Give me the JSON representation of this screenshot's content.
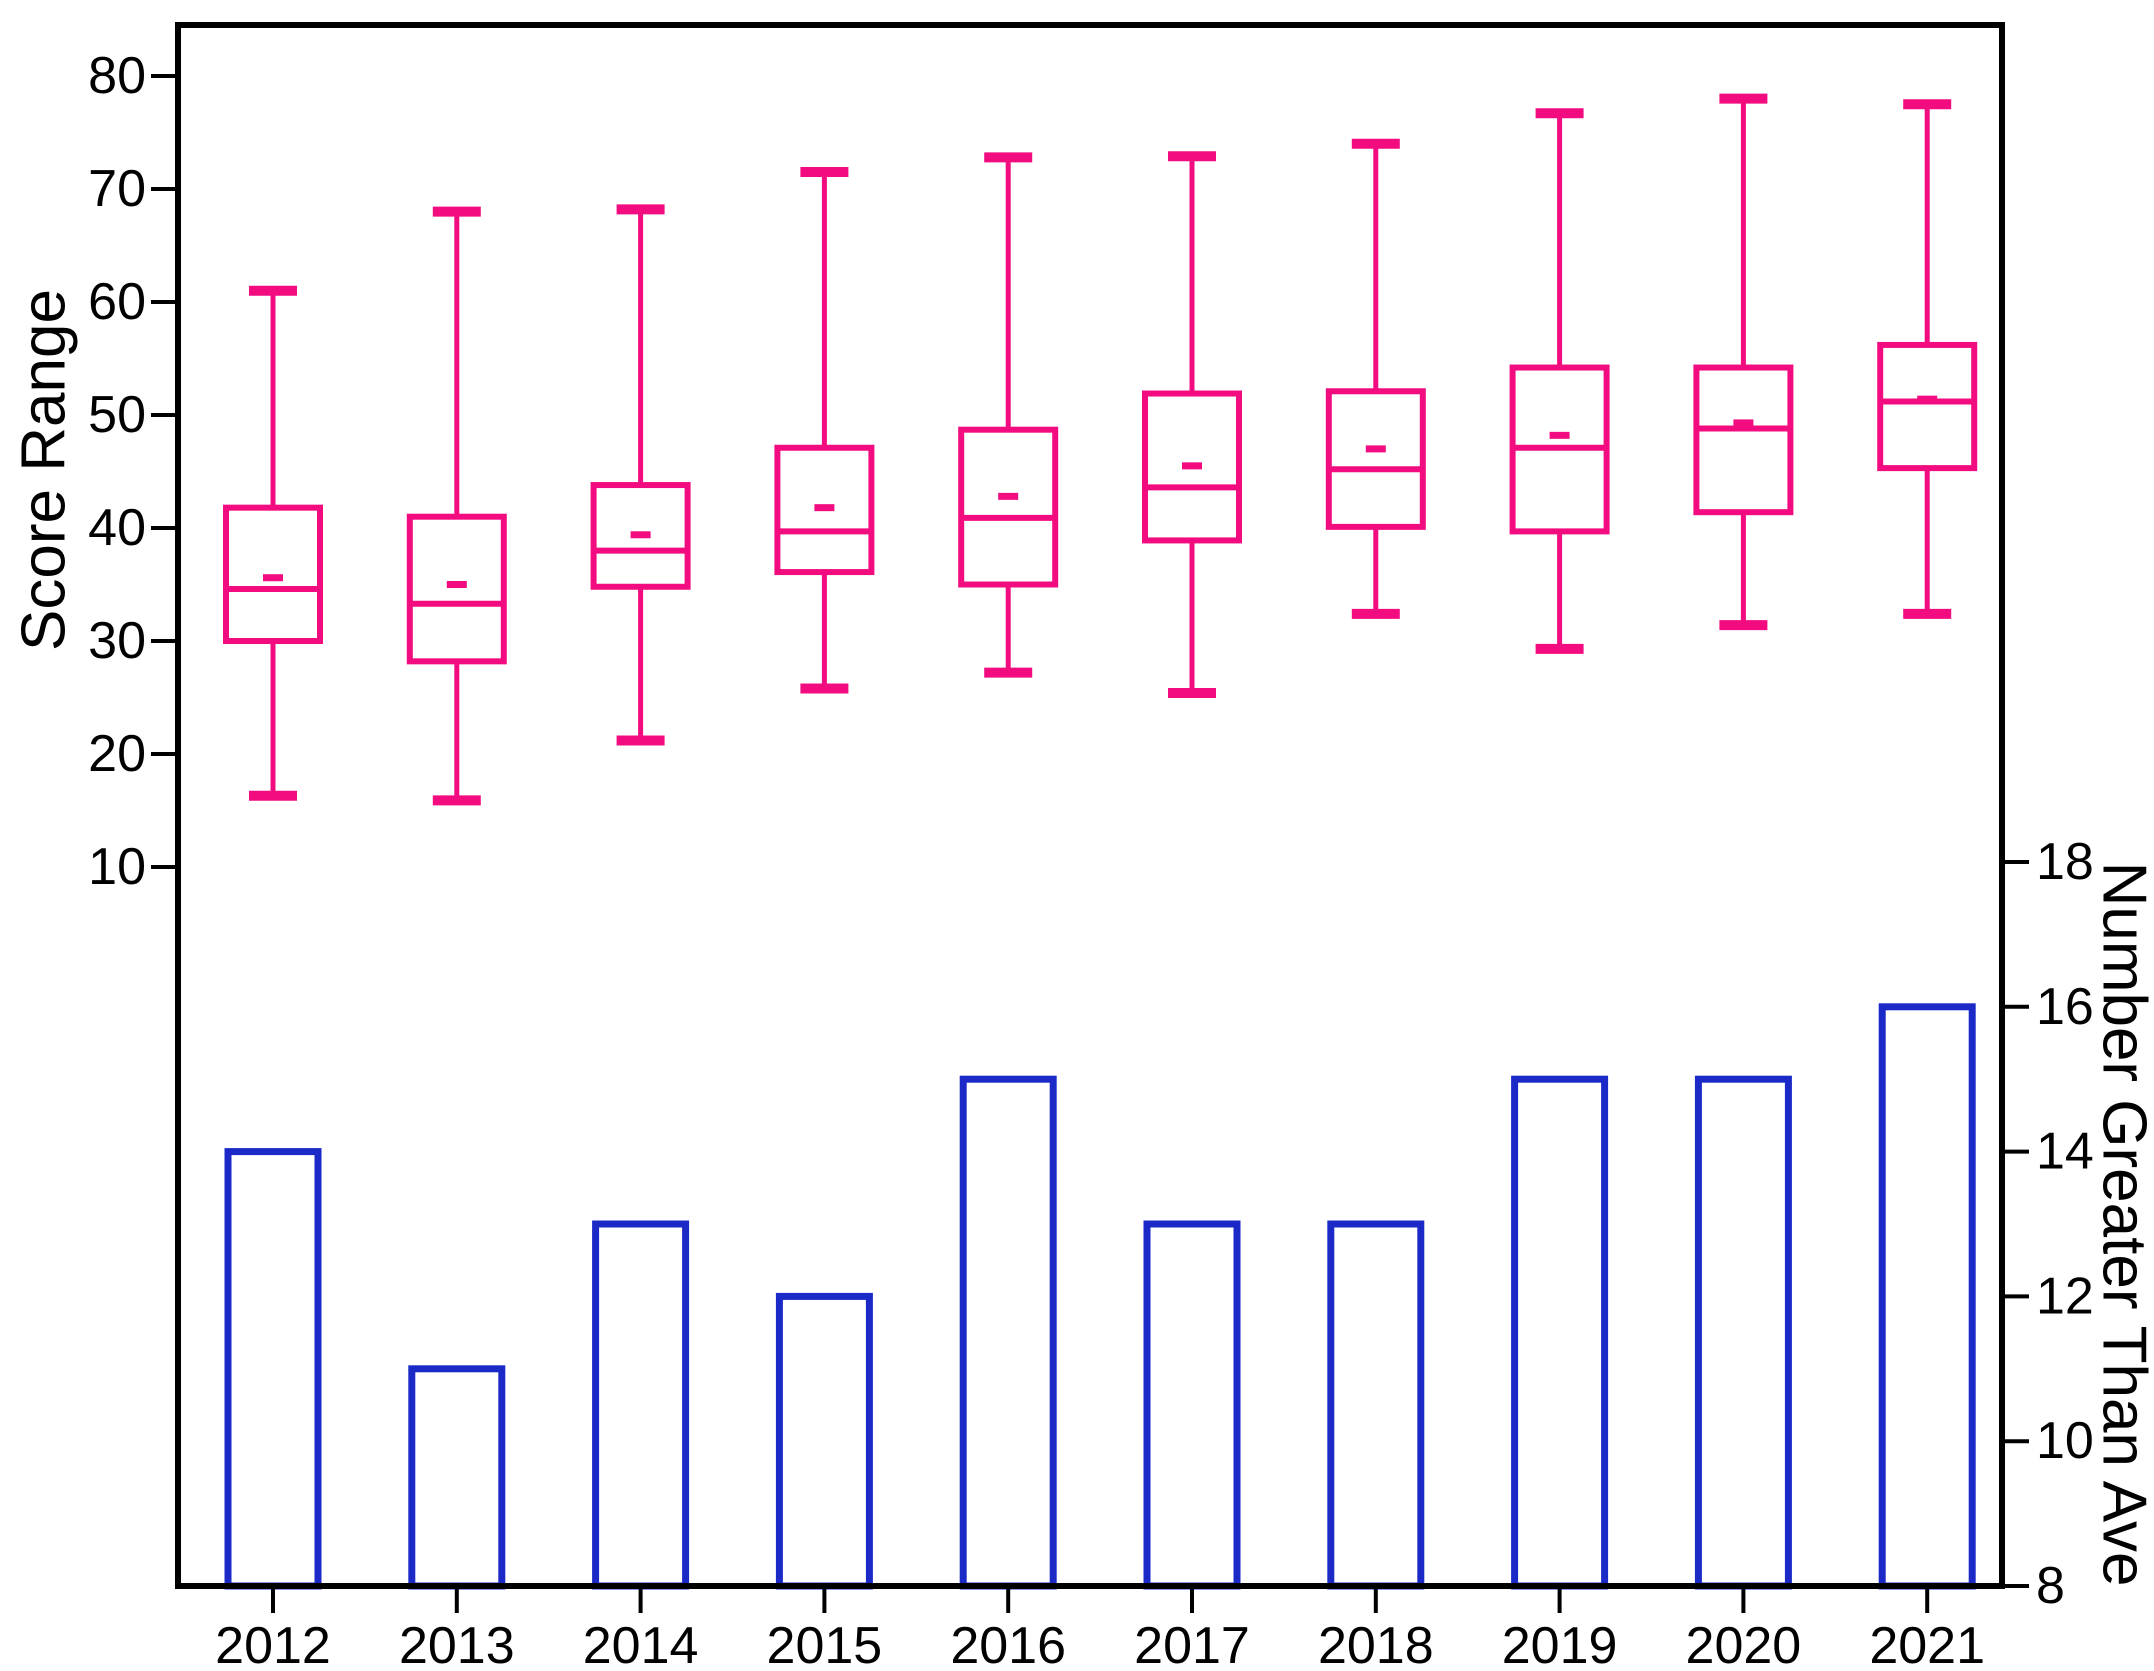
{
  "figure": {
    "background": "#ffffff",
    "frame_color": "#000000"
  },
  "chart_data": {
    "type": "combo-boxplot-bar",
    "title": "",
    "grid": false,
    "legend": null,
    "categories": [
      "2012",
      "2013",
      "2014",
      "2015",
      "2016",
      "2017",
      "2018",
      "2019",
      "2020",
      "2021"
    ],
    "left_axis": {
      "label": "Score Range",
      "ticks": [
        80,
        70,
        60,
        50,
        40,
        30,
        20,
        10
      ],
      "range_shown": [
        10,
        80
      ]
    },
    "right_axis": {
      "label": "Number Greater Than Ave",
      "ticks": [
        18,
        16,
        14,
        12,
        10,
        8
      ],
      "range": [
        8,
        18
      ]
    },
    "series": [
      {
        "name": "Score Range",
        "type": "boxplot",
        "axis": "left",
        "color": "#F20C80",
        "box_fill": "#ffffff",
        "boxes": [
          {
            "category": "2012",
            "min": 16.3,
            "q1": 30.0,
            "median": 34.6,
            "mean": 35.6,
            "q3": 41.8,
            "max": 61.0
          },
          {
            "category": "2013",
            "min": 15.9,
            "q1": 28.2,
            "median": 33.3,
            "mean": 35.0,
            "q3": 41.0,
            "max": 68.0
          },
          {
            "category": "2014",
            "min": 21.2,
            "q1": 34.8,
            "median": 38.0,
            "mean": 39.4,
            "q3": 43.8,
            "max": 68.2
          },
          {
            "category": "2015",
            "min": 25.8,
            "q1": 36.1,
            "median": 39.7,
            "mean": 41.8,
            "q3": 47.1,
            "max": 71.5
          },
          {
            "category": "2016",
            "min": 27.2,
            "q1": 35.0,
            "median": 40.9,
            "mean": 42.8,
            "q3": 48.7,
            "max": 72.8
          },
          {
            "category": "2017",
            "min": 25.4,
            "q1": 38.9,
            "median": 43.6,
            "mean": 45.5,
            "q3": 51.9,
            "max": 72.9
          },
          {
            "category": "2018",
            "min": 32.4,
            "q1": 40.1,
            "median": 45.2,
            "mean": 47.0,
            "q3": 52.1,
            "max": 74.0
          },
          {
            "category": "2019",
            "min": 29.3,
            "q1": 39.7,
            "median": 47.1,
            "mean": 48.2,
            "q3": 54.2,
            "max": 76.7
          },
          {
            "category": "2020",
            "min": 31.4,
            "q1": 41.4,
            "median": 48.8,
            "mean": 49.3,
            "q3": 54.2,
            "max": 78.0
          },
          {
            "category": "2021",
            "min": 32.4,
            "q1": 45.3,
            "median": 51.2,
            "mean": 51.4,
            "q3": 56.2,
            "max": 77.5
          }
        ]
      },
      {
        "name": "Number Greater Than Ave",
        "type": "bar",
        "axis": "right",
        "color": "#1B2AC7",
        "fill": "#ffffff",
        "values": [
          14,
          11,
          13,
          12,
          15,
          13,
          13,
          15,
          15,
          16
        ]
      }
    ]
  }
}
